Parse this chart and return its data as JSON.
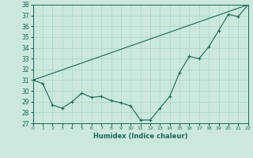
{
  "title": "",
  "xlabel": "Humidex (Indice chaleur)",
  "ylabel": "",
  "bg_color": "#cce8dd",
  "grid_color": "#aad4c4",
  "line_color": "#1a6655",
  "x_min": 0,
  "x_max": 22,
  "y_min": 27,
  "y_max": 38,
  "x_ticks": [
    0,
    1,
    2,
    3,
    4,
    5,
    6,
    7,
    8,
    9,
    10,
    11,
    12,
    13,
    14,
    15,
    16,
    17,
    18,
    19,
    20,
    21,
    22
  ],
  "y_ticks": [
    27,
    28,
    29,
    30,
    31,
    32,
    33,
    34,
    35,
    36,
    37,
    38
  ],
  "line1_x": [
    0,
    1,
    2,
    3,
    4,
    5,
    6,
    7,
    8,
    9,
    10,
    11,
    12,
    13,
    14,
    15,
    16,
    17,
    18,
    19,
    20,
    21,
    22
  ],
  "line1_y": [
    31.0,
    30.7,
    28.7,
    28.4,
    29.0,
    29.8,
    29.4,
    29.5,
    29.1,
    28.9,
    28.6,
    27.3,
    27.3,
    28.4,
    29.5,
    31.7,
    33.2,
    33.0,
    34.1,
    35.6,
    37.1,
    36.9,
    38.0
  ],
  "line2_x": [
    0,
    22
  ],
  "line2_y": [
    31.0,
    38.0
  ]
}
